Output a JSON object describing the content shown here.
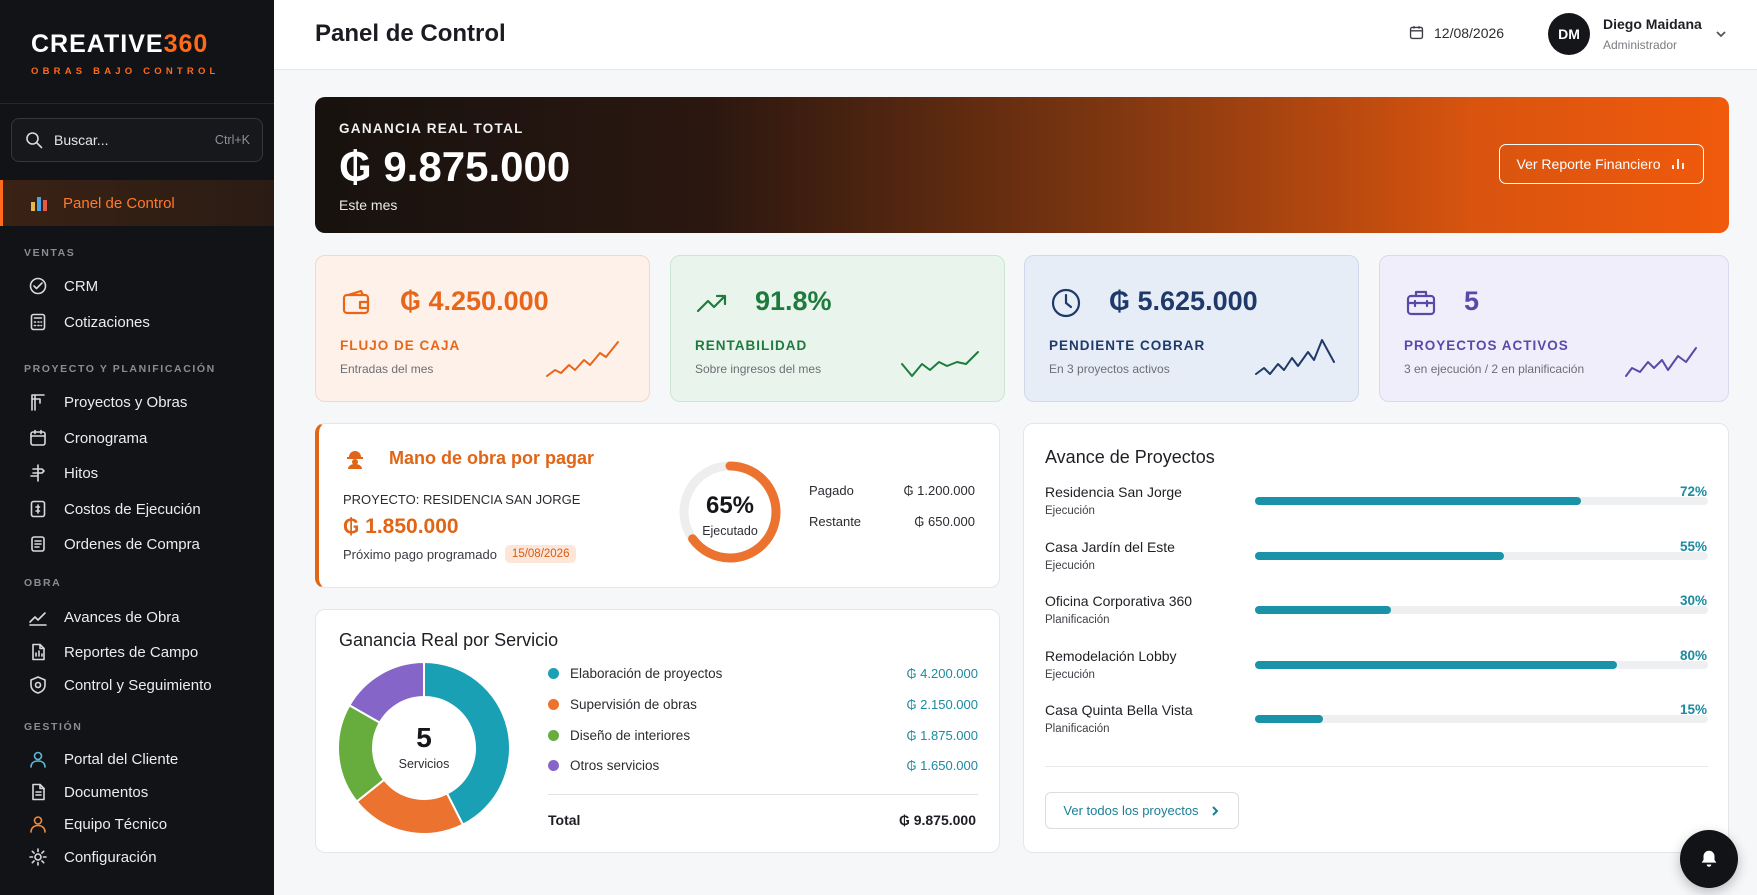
{
  "brand": {
    "name_main": "CREATIVE",
    "name_accent": "360",
    "tagline": "OBRAS BAJO CONTROL",
    "accent_color": "#ff6a1a"
  },
  "search": {
    "placeholder": "Buscar...",
    "shortcut": "Ctrl+K"
  },
  "sidebar": {
    "active": {
      "label": "Panel de Control",
      "icon": "chart-icon"
    },
    "sections": [
      {
        "title": "VENTAS",
        "items": [
          {
            "label": "CRM",
            "icon": "handshake-icon"
          },
          {
            "label": "Cotizaciones",
            "icon": "calculator-icon"
          }
        ]
      },
      {
        "title": "PROYECTO Y PLANIFICACIÓN",
        "items": [
          {
            "label": "Proyectos y Obras",
            "icon": "crane-icon"
          },
          {
            "label": "Cronograma",
            "icon": "calendar-icon"
          },
          {
            "label": "Hitos",
            "icon": "milestone-icon"
          },
          {
            "label": "Costos de Ejecución",
            "icon": "cost-icon"
          },
          {
            "label": "Ordenes de Compra",
            "icon": "order-icon"
          }
        ]
      },
      {
        "title": "OBRA",
        "items": [
          {
            "label": "Avances de Obra",
            "icon": "trend-icon"
          },
          {
            "label": "Reportes de Campo",
            "icon": "report-icon"
          },
          {
            "label": "Control y Seguimiento",
            "icon": "shield-icon"
          }
        ]
      },
      {
        "title": "GESTIÓN",
        "items": [
          {
            "label": "Portal del Cliente",
            "icon": "user-icon"
          },
          {
            "label": "Documentos",
            "icon": "document-icon"
          },
          {
            "label": "Equipo Técnico",
            "icon": "team-icon"
          },
          {
            "label": "Configuración",
            "icon": "gear-icon"
          }
        ]
      }
    ]
  },
  "header": {
    "title": "Panel de Control",
    "date": "12/08/2026",
    "user": {
      "initials": "DM",
      "name": "Diego Maidana",
      "role": "Administrador"
    }
  },
  "hero": {
    "label": "GANANCIA REAL TOTAL",
    "value": "₲ 9.875.000",
    "period": "Este mes",
    "button": "Ver Reporte Financiero"
  },
  "kpis": [
    {
      "value": "₲ 4.250.000",
      "label": "FLUJO DE CAJA",
      "sub": "Entradas del mes",
      "icon": "wallet-icon",
      "color": "#e8661a",
      "bg": "#fdf1ea",
      "border": "#f6d7c3"
    },
    {
      "value": "91.8%",
      "label": "RENTABILIDAD",
      "sub": "Sobre ingresos del mes",
      "icon": "trending-up-icon",
      "color": "#1f7a3d",
      "bg": "#e9f5ec",
      "border": "#cde6d3"
    },
    {
      "value": "₲ 5.625.000",
      "label": "PENDIENTE COBRAR",
      "sub": "En 3 proyectos activos",
      "icon": "clock-icon",
      "color": "#1f3a6a",
      "bg": "#e7edf7",
      "border": "#cfd9ea"
    },
    {
      "value": "5",
      "label": "PROYECTOS ACTIVOS",
      "sub": "3 en ejecución / 2 en planificación",
      "icon": "briefcase-icon",
      "color": "#5a4aa8",
      "bg": "#efeefa",
      "border": "#dbd8f0"
    }
  ],
  "labor": {
    "title": "Mano de obra por pagar",
    "project": "PROYECTO: RESIDENCIA SAN JORGE",
    "amount": "₲ 1.850.000",
    "next_label": "Próximo pago programado",
    "next_date": "15/08/2026",
    "executed_pct": "65%",
    "executed_value": 65,
    "executed_label": "Ejecutado",
    "paid_label": "Pagado",
    "paid_value": "₲ 1.200.000",
    "remaining_label": "Restante",
    "remaining_value": "₲ 650.000"
  },
  "service": {
    "title": "Ganancia Real por Servicio",
    "center_number": "5",
    "center_label": "Servicios",
    "items": [
      {
        "name": "Elaboración de proyectos",
        "value": "₲ 4.200.000",
        "amount": 4200000,
        "color": "#1aa0b4"
      },
      {
        "name": "Supervisión de obras",
        "value": "₲ 2.150.000",
        "amount": 2150000,
        "color": "#ec7230"
      },
      {
        "name": "Diseño de interiores",
        "value": "₲ 1.875.000",
        "amount": 1875000,
        "color": "#66ad3e"
      },
      {
        "name": "Otros servicios",
        "value": "₲ 1.650.000",
        "amount": 1650000,
        "color": "#8566c8"
      }
    ],
    "total_label": "Total",
    "total_value": "₲ 9.875.000"
  },
  "progress": {
    "title": "Avance de Proyectos",
    "projects": [
      {
        "name": "Residencia San Jorge",
        "phase": "Ejecución",
        "pct": "72%",
        "value": 72
      },
      {
        "name": "Casa Jardín del Este",
        "phase": "Ejecución",
        "pct": "55%",
        "value": 55
      },
      {
        "name": "Oficina Corporativa 360",
        "phase": "Planificación",
        "pct": "30%",
        "value": 30
      },
      {
        "name": "Remodelación Lobby",
        "phase": "Ejecución",
        "pct": "80%",
        "value": 80
      },
      {
        "name": "Casa Quinta Bella Vista",
        "phase": "Planificación",
        "pct": "15%",
        "value": 15
      }
    ],
    "button": "Ver todos los proyectos"
  }
}
